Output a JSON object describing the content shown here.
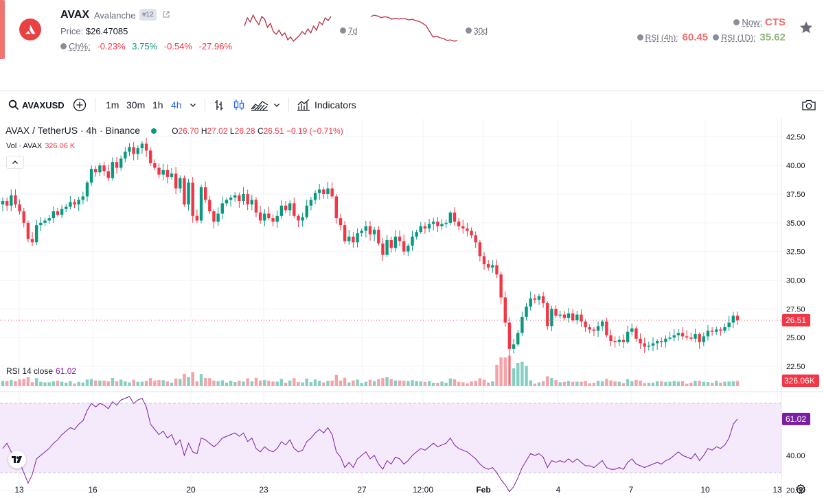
{
  "header": {
    "symbol": "AVAX",
    "name": "Avalanche",
    "rank": "#12",
    "price_label": "Price:",
    "price_value": "$26.47085",
    "change_label": "Ch%:",
    "changes": [
      {
        "value": "-0.23%",
        "color": "#f23645"
      },
      {
        "value": "3.75%",
        "color": "#089981"
      },
      {
        "value": "-0.54%",
        "color": "#f23645"
      },
      {
        "value": "-27.96%",
        "color": "#f23645"
      }
    ],
    "spark_7d_label": "7d",
    "spark_30d_label": "30d",
    "spark_7d": [
      24.6,
      25.2,
      24.9,
      25.4,
      25.0,
      24.7,
      25.3,
      25.1,
      24.5,
      24.8,
      24.2,
      24.0,
      24.3,
      23.9,
      24.1,
      23.6,
      23.8,
      23.5,
      23.7,
      23.9,
      24.2,
      24.0,
      24.4,
      24.1,
      24.6,
      24.3,
      24.9,
      24.7,
      25.2,
      25.0,
      25.3
    ],
    "spark_30d": [
      36.0,
      36.6,
      36.2,
      35.6,
      35.9,
      35.7,
      34.9,
      35.3,
      35.0,
      35.2,
      35.1,
      34.6,
      34.9,
      34.3,
      34.0,
      33.2,
      32.2,
      29.8,
      27.6,
      27.9,
      27.3,
      27.0,
      26.2,
      26.4,
      25.9,
      26.1
    ],
    "spark_color": "#b82e3c",
    "now_label": "Now:",
    "now_value": "CTS",
    "rsi_4h_label": "RSI (4h):",
    "rsi_4h_value": "60.45",
    "rsi_1d_label": "RSI (1D):",
    "rsi_1d_value": "35.62",
    "icons": {
      "logo": "avalanche-logo-icon",
      "star": "star-icon",
      "external": "external-link-icon",
      "info": "question-icon"
    }
  },
  "toolbar": {
    "symbol": "AVAXUSD",
    "timeframes": [
      "1m",
      "30m",
      "1h",
      "4h"
    ],
    "active_timeframe": "4h",
    "indicators_label": "Indicators",
    "accent": "#2962ff"
  },
  "legend": {
    "title": "AVAX / TetherUS · 4h · Binance",
    "o_label": "O",
    "o": "26.70",
    "h_label": "H",
    "h": "27.02",
    "l_label": "L",
    "l": "26.28",
    "c_label": "C",
    "c": "26.51",
    "change": "−0.19 (−0.71%)",
    "vol_label": "Vol · AVAX",
    "vol_value": "326.06 K",
    "rsi_label": "RSI 14 close",
    "rsi_value": "61.02"
  },
  "chart_data": {
    "type": "candlestick",
    "price_axis": {
      "ticks": [
        "42.50",
        "40.00",
        "37.50",
        "35.00",
        "32.50",
        "30.00",
        "27.50",
        "25.00",
        "22.50"
      ],
      "range": [
        20.4,
        43.6
      ]
    },
    "last_price_label": "26.51",
    "last_volume_label": "326.06K",
    "rsi_axis": {
      "ticks": [
        "60.00",
        "40.00",
        "20.00"
      ],
      "range": [
        15,
        76
      ],
      "band": [
        30,
        70
      ]
    },
    "last_rsi_label": "61.02",
    "x_labels": [
      "13",
      "16",
      "20",
      "23",
      "27",
      "12:00",
      "Feb",
      "4",
      "7",
      "10",
      "13"
    ],
    "up_color": "#089981",
    "down_color": "#f23645",
    "rsi_color": "#7b1fa2",
    "closes": [
      36.9,
      36.5,
      37.4,
      36.6,
      36.0,
      35.0,
      33.6,
      33.3,
      34.8,
      35.0,
      35.2,
      35.4,
      36.0,
      35.7,
      36.2,
      36.4,
      36.8,
      36.6,
      37.0,
      37.3,
      38.5,
      39.7,
      39.4,
      40.0,
      39.5,
      38.9,
      40.3,
      39.8,
      40.6,
      41.2,
      41.6,
      41.0,
      41.5,
      41.9,
      41.3,
      40.2,
      39.8,
      39.2,
      39.6,
      39.0,
      39.3,
      38.0,
      38.9,
      36.6,
      38.5,
      35.6,
      35.2,
      38.1,
      37.0,
      36.0,
      35.1,
      35.8,
      36.7,
      37.0,
      37.2,
      37.4,
      36.9,
      37.5,
      36.6,
      37.0,
      35.9,
      35.2,
      35.8,
      35.4,
      35.1,
      35.6,
      36.5,
      36.1,
      36.7,
      35.6,
      35.2,
      35.5,
      36.5,
      37.0,
      37.6,
      37.9,
      37.5,
      38.0,
      37.3,
      35.4,
      34.8,
      33.4,
      33.8,
      33.3,
      34.1,
      34.3,
      34.7,
      34.0,
      34.4,
      33.2,
      32.2,
      33.5,
      32.8,
      33.8,
      33.4,
      32.5,
      33.0,
      33.8,
      34.2,
      34.7,
      34.5,
      34.9,
      35.1,
      34.7,
      34.9,
      35.0,
      35.9,
      35.1,
      34.7,
      34.5,
      34.3,
      33.9,
      33.3,
      32.1,
      31.4,
      31.1,
      31.3,
      30.5,
      28.5,
      26.3,
      24.0,
      24.4,
      25.4,
      26.8,
      27.7,
      28.4,
      28.3,
      28.6,
      28.0,
      26.0,
      27.5,
      26.9,
      27.0,
      26.7,
      27.1,
      26.5,
      27.0,
      26.4,
      25.9,
      25.7,
      25.6,
      26.0,
      26.4,
      25.2,
      24.7,
      24.6,
      24.8,
      24.6,
      25.5,
      25.8,
      24.9,
      24.5,
      24.2,
      24.3,
      24.5,
      24.7,
      24.6,
      24.9,
      25.0,
      25.2,
      25.4,
      25.1,
      25.0,
      24.9,
      25.3,
      24.6,
      25.1,
      25.6,
      25.5,
      25.7,
      25.6,
      25.9,
      26.3,
      26.9,
      26.51
    ],
    "rsi": [
      44,
      47,
      42,
      39,
      36,
      30,
      24,
      29,
      38,
      40,
      42,
      44,
      47,
      49,
      52,
      54,
      56,
      55,
      58,
      60,
      66,
      70,
      68,
      70,
      69,
      67,
      71,
      69,
      72,
      73,
      74,
      70,
      72,
      73,
      68,
      58,
      55,
      52,
      54,
      50,
      52,
      46,
      49,
      40,
      47,
      42,
      41,
      50,
      49,
      47,
      45,
      47,
      50,
      51,
      52,
      53,
      51,
      53,
      48,
      50,
      44,
      42,
      45,
      43,
      42,
      44,
      48,
      46,
      49,
      44,
      42,
      43,
      48,
      50,
      53,
      55,
      53,
      56,
      52,
      42,
      39,
      33,
      36,
      33,
      38,
      40,
      42,
      38,
      40,
      35,
      32,
      37,
      35,
      39,
      38,
      35,
      37,
      40,
      42,
      44,
      43,
      45,
      47,
      45,
      46,
      47,
      50,
      46,
      44,
      43,
      42,
      40,
      38,
      35,
      33,
      32,
      33,
      30,
      26,
      23,
      19,
      22,
      27,
      33,
      37,
      41,
      40,
      41,
      39,
      33,
      37,
      36,
      37,
      36,
      38,
      36,
      38,
      36,
      34,
      34,
      33,
      35,
      37,
      33,
      32,
      32,
      33,
      32,
      36,
      38,
      35,
      34,
      33,
      34,
      35,
      36,
      35,
      37,
      38,
      40,
      42,
      40,
      39,
      38,
      41,
      37,
      40,
      44,
      43,
      45,
      44,
      46,
      50,
      58,
      61.02
    ]
  }
}
